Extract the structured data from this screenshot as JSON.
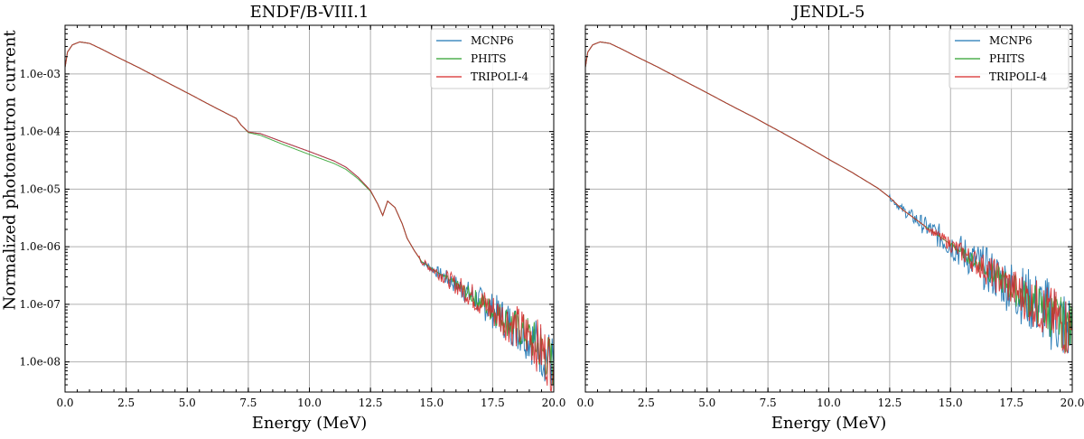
{
  "figure": {
    "ylabel": "Normalized photoneutron current",
    "colors": {
      "MCNP6": "#1f77b4",
      "PHITS": "#2ca02c",
      "TRIPOLI-4": "#d62728",
      "grid": "#b0b0b0"
    }
  },
  "chart_data": [
    {
      "type": "line",
      "title": "ENDF/B-VIII.1",
      "xlabel": "Energy (MeV)",
      "ylabel": "Normalized photoneutron current",
      "xlim": [
        0,
        20
      ],
      "ylim": [
        3e-09,
        0.007
      ],
      "yscale": "log",
      "x_ticks": [
        "0.0",
        "2.5",
        "5.0",
        "7.5",
        "10.0",
        "12.5",
        "15.0",
        "17.5",
        "20.0"
      ],
      "y_ticks": [
        "1.0e-03",
        "1.0e-04",
        "1.0e-05",
        "1.0e-06",
        "1.0e-07",
        "1.0e-08"
      ],
      "legend": [
        "MCNP6",
        "PHITS",
        "TRIPOLI-4"
      ],
      "legend_position": "top-right",
      "grid": true,
      "series": [
        {
          "name": "MCNP6",
          "x": [
            0.0,
            0.1,
            0.3,
            0.6,
            1.0,
            1.5,
            2.0,
            3.0,
            4.0,
            5.0,
            6.0,
            7.0,
            7.2,
            7.5,
            8.0,
            9.0,
            10.0,
            11.0,
            11.5,
            12.0,
            12.5,
            12.8,
            13.0,
            13.2,
            13.5,
            13.8,
            14.0,
            14.3,
            14.6,
            15.0,
            16.0,
            17.0,
            18.0,
            19.0,
            20.0
          ],
          "y": [
            0.0013,
            0.0024,
            0.0032,
            0.0036,
            0.0034,
            0.0027,
            0.0021,
            0.0013,
            0.00078,
            0.00047,
            0.00028,
            0.00017,
            0.00013,
            9.8e-05,
            9.2e-05,
            6.4e-05,
            4.5e-05,
            3.1e-05,
            2.4e-05,
            1.6e-05,
            9.5e-06,
            5.5e-06,
            3.5e-06,
            6.2e-06,
            4.8e-06,
            2.5e-06,
            1.4e-06,
            8.5e-07,
            5.5e-07,
            4.2e-07,
            2.2e-07,
            1.1e-07,
            5.5e-08,
            2.8e-08,
            9e-09
          ],
          "noise_from_x": 14.5
        },
        {
          "name": "PHITS",
          "x": [
            0.0,
            0.1,
            0.3,
            0.6,
            1.0,
            1.5,
            2.0,
            3.0,
            4.0,
            5.0,
            6.0,
            7.0,
            7.2,
            7.5,
            8.0,
            9.0,
            10.0,
            11.0,
            11.5,
            12.0,
            12.5,
            12.8,
            13.0,
            13.2,
            13.5,
            13.8,
            14.0,
            14.3,
            14.6,
            15.0,
            16.0,
            17.0,
            18.0,
            19.0,
            20.0
          ],
          "y": [
            0.0013,
            0.0024,
            0.0032,
            0.0036,
            0.0034,
            0.0027,
            0.0021,
            0.0013,
            0.00078,
            0.00047,
            0.00028,
            0.00017,
            0.00013,
            9.6e-05,
            8.6e-05,
            5.8e-05,
            4e-05,
            2.8e-05,
            2.2e-05,
            1.5e-05,
            9.2e-06,
            5.5e-06,
            3.5e-06,
            6.2e-06,
            4.8e-06,
            2.5e-06,
            1.4e-06,
            8.5e-07,
            5.5e-07,
            4.2e-07,
            2.2e-07,
            1.1e-07,
            5.5e-08,
            2.8e-08,
            9e-09
          ],
          "noise_from_x": 15.5
        },
        {
          "name": "TRIPOLI-4",
          "x": [
            0.0,
            0.1,
            0.3,
            0.6,
            1.0,
            1.5,
            2.0,
            3.0,
            4.0,
            5.0,
            6.0,
            7.0,
            7.2,
            7.5,
            8.0,
            9.0,
            10.0,
            11.0,
            11.5,
            12.0,
            12.5,
            12.8,
            13.0,
            13.2,
            13.5,
            13.8,
            14.0,
            14.3,
            14.6,
            15.0,
            16.0,
            17.0,
            18.0,
            19.0,
            20.0
          ],
          "y": [
            0.0013,
            0.0024,
            0.0032,
            0.0036,
            0.0034,
            0.0027,
            0.0021,
            0.0013,
            0.00078,
            0.00047,
            0.00028,
            0.00017,
            0.00013,
            9.8e-05,
            9.2e-05,
            6.4e-05,
            4.5e-05,
            3.1e-05,
            2.4e-05,
            1.6e-05,
            9.5e-06,
            5.5e-06,
            3.5e-06,
            6.2e-06,
            4.8e-06,
            2.5e-06,
            1.4e-06,
            8.5e-07,
            5.5e-07,
            4.2e-07,
            2.2e-07,
            1.1e-07,
            5.5e-08,
            2.8e-08,
            9e-09
          ],
          "noise_from_x": 14.5
        }
      ]
    },
    {
      "type": "line",
      "title": "JENDL-5",
      "xlabel": "Energy (MeV)",
      "xlim": [
        0,
        20
      ],
      "ylim": [
        3e-09,
        0.007
      ],
      "yscale": "log",
      "x_ticks": [
        "0.0",
        "2.5",
        "5.0",
        "7.5",
        "10.0",
        "12.5",
        "15.0",
        "17.5",
        "20.0"
      ],
      "legend": [
        "MCNP6",
        "PHITS",
        "TRIPOLI-4"
      ],
      "legend_position": "top-right",
      "grid": true,
      "series": [
        {
          "name": "MCNP6",
          "x": [
            0.0,
            0.1,
            0.3,
            0.6,
            1.0,
            1.5,
            2.0,
            3.0,
            4.0,
            5.0,
            6.0,
            7.0,
            7.5,
            8.0,
            9.0,
            10.0,
            11.0,
            12.0,
            12.5,
            13.0,
            14.0,
            15.0,
            16.0,
            17.0,
            18.0,
            19.0,
            20.0
          ],
          "y": [
            0.0013,
            0.0024,
            0.0032,
            0.0036,
            0.0034,
            0.0027,
            0.0021,
            0.0013,
            0.00078,
            0.00047,
            0.00028,
            0.00017,
            0.00013,
            0.0001,
            5.8e-05,
            3.3e-05,
            1.9e-05,
            1.05e-05,
            7.2e-06,
            4.5e-06,
            2.2e-06,
            1.1e-06,
            5.5e-07,
            2.8e-07,
            1.4e-07,
            7.2e-08,
            3.5e-08
          ],
          "noise_from_x": 12.5
        },
        {
          "name": "PHITS",
          "x": [
            0.0,
            0.1,
            0.3,
            0.6,
            1.0,
            1.5,
            2.0,
            3.0,
            4.0,
            5.0,
            6.0,
            7.0,
            7.5,
            8.0,
            9.0,
            10.0,
            11.0,
            12.0,
            12.5,
            13.0,
            14.0,
            15.0,
            16.0,
            17.0,
            18.0,
            19.0,
            20.0
          ],
          "y": [
            0.0013,
            0.0024,
            0.0032,
            0.0036,
            0.0034,
            0.0027,
            0.0021,
            0.0013,
            0.00078,
            0.00047,
            0.00028,
            0.00017,
            0.00013,
            0.0001,
            5.8e-05,
            3.3e-05,
            1.9e-05,
            1.05e-05,
            7.2e-06,
            4.5e-06,
            2.2e-06,
            1.1e-06,
            5.5e-07,
            2.8e-07,
            1.4e-07,
            7.2e-08,
            3.5e-08
          ],
          "noise_from_x": 15.0
        },
        {
          "name": "TRIPOLI-4",
          "x": [
            0.0,
            0.1,
            0.3,
            0.6,
            1.0,
            1.5,
            2.0,
            3.0,
            4.0,
            5.0,
            6.0,
            7.0,
            7.5,
            8.0,
            9.0,
            10.0,
            11.0,
            12.0,
            12.5,
            13.0,
            14.0,
            15.0,
            16.0,
            17.0,
            18.0,
            19.0,
            20.0
          ],
          "y": [
            0.0013,
            0.0024,
            0.0032,
            0.0036,
            0.0034,
            0.0027,
            0.0021,
            0.0013,
            0.00078,
            0.00047,
            0.00028,
            0.00017,
            0.00013,
            0.0001,
            5.8e-05,
            3.3e-05,
            1.9e-05,
            1.05e-05,
            7.2e-06,
            4.5e-06,
            2.2e-06,
            1.1e-06,
            5.5e-07,
            2.8e-07,
            1.4e-07,
            7.2e-08,
            3.5e-08
          ],
          "noise_from_x": 14.0
        }
      ]
    }
  ]
}
